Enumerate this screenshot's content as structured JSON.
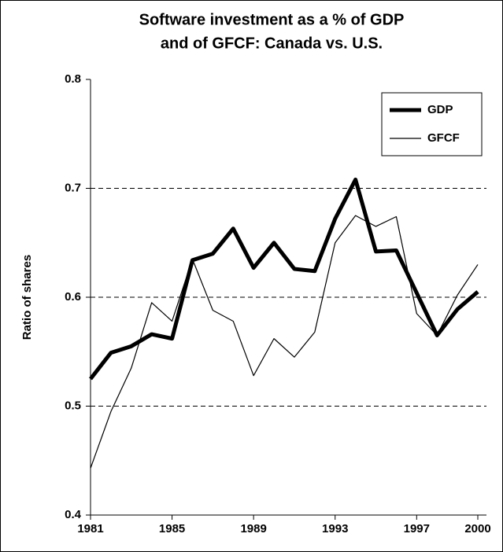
{
  "chart_data": {
    "type": "line",
    "title": [
      "Software investment as a % of GDP",
      "and of GFCF: Canada vs. U.S."
    ],
    "y_label": "Ratio of shares",
    "x": [
      1981,
      1982,
      1983,
      1984,
      1985,
      1986,
      1987,
      1988,
      1989,
      1990,
      1991,
      1992,
      1993,
      1994,
      1995,
      1996,
      1997,
      1998,
      1999,
      2000
    ],
    "series": [
      {
        "name": "GDP",
        "color": "#000000",
        "width": 5,
        "values": [
          0.525,
          0.549,
          0.555,
          0.566,
          0.562,
          0.634,
          0.64,
          0.663,
          0.627,
          0.65,
          0.626,
          0.624,
          0.672,
          0.708,
          0.642,
          0.643,
          0.604,
          0.565,
          0.589,
          0.605
        ]
      },
      {
        "name": "GFCF",
        "color": "#000000",
        "width": 1.2,
        "values": [
          0.443,
          0.495,
          0.535,
          0.595,
          0.578,
          0.635,
          0.588,
          0.578,
          0.528,
          0.562,
          0.545,
          0.568,
          0.65,
          0.675,
          0.665,
          0.674,
          0.585,
          0.565,
          0.602,
          0.63
        ]
      }
    ],
    "xlim": [
      1981,
      2000
    ],
    "xticks": [
      1981,
      1985,
      1989,
      1993,
      1997,
      2000
    ],
    "ylim": [
      0.4,
      0.8
    ],
    "yticks": [
      0.4,
      0.5,
      0.6,
      0.7,
      0.8
    ],
    "grid": true,
    "legend": "top-right"
  }
}
